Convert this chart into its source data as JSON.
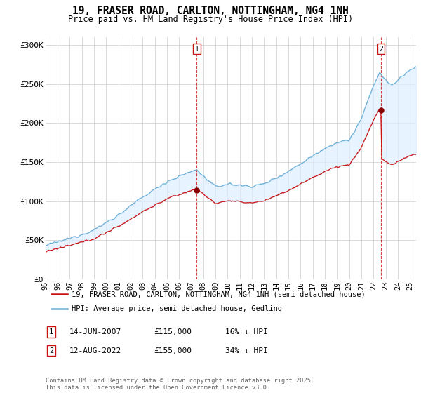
{
  "title": "19, FRASER ROAD, CARLTON, NOTTINGHAM, NG4 1NH",
  "subtitle": "Price paid vs. HM Land Registry's House Price Index (HPI)",
  "ylabel_ticks": [
    "£0",
    "£50K",
    "£100K",
    "£150K",
    "£200K",
    "£250K",
    "£300K"
  ],
  "ytick_values": [
    0,
    50000,
    100000,
    150000,
    200000,
    250000,
    300000
  ],
  "ylim": [
    0,
    310000
  ],
  "xlim_start": 1995.0,
  "xlim_end": 2025.5,
  "xticks": [
    1995,
    1996,
    1997,
    1998,
    1999,
    2000,
    2001,
    2002,
    2003,
    2004,
    2005,
    2006,
    2007,
    2008,
    2009,
    2010,
    2011,
    2012,
    2013,
    2014,
    2015,
    2016,
    2017,
    2018,
    2019,
    2020,
    2021,
    2022,
    2023,
    2024,
    2025
  ],
  "sale1_date": 2007.45,
  "sale1_price": 115000,
  "sale1_label": "1",
  "sale2_date": 2022.62,
  "sale2_price": 155000,
  "sale2_label": "2",
  "line_color_hpi": "#6aaed6",
  "line_color_price": "#cc1111",
  "fill_color": "#ddeeff",
  "vline_color": "#cc1111",
  "dot_color": "#880000",
  "legend_label1": "19, FRASER ROAD, CARLTON, NOTTINGHAM, NG4 1NH (semi-detached house)",
  "legend_label2": "HPI: Average price, semi-detached house, Gedling",
  "table_row1": [
    "1",
    "14-JUN-2007",
    "£115,000",
    "16% ↓ HPI"
  ],
  "table_row2": [
    "2",
    "12-AUG-2022",
    "£155,000",
    "34% ↓ HPI"
  ],
  "footer": "Contains HM Land Registry data © Crown copyright and database right 2025.\nThis data is licensed under the Open Government Licence v3.0.",
  "background_color": "#ffffff",
  "grid_color": "#cccccc"
}
